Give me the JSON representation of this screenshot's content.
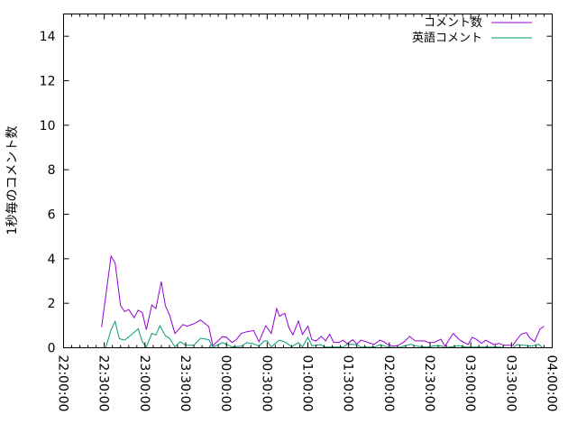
{
  "chart_data": {
    "type": "line",
    "title": "",
    "xlabel": "",
    "ylabel": "1秒毎のコメント数",
    "xlim": [
      "22:00:00",
      "04:00:00"
    ],
    "ylim": [
      0,
      15
    ],
    "grid": false,
    "legend_position": "top-right",
    "x_ticks": [
      "22:00:00",
      "22:30:00",
      "23:00:00",
      "23:30:00",
      "00:00:00",
      "00:30:00",
      "01:00:00",
      "01:30:00",
      "02:00:00",
      "02:30:00",
      "03:00:00",
      "03:30:00",
      "04:00:00"
    ],
    "y_ticks": [
      "0",
      "2",
      "4",
      "6",
      "8",
      "10",
      "12",
      "14"
    ],
    "series": [
      {
        "name": "コメント数",
        "color": "#9400d3",
        "x": [
          "22:28",
          "22:35",
          "22:38",
          "22:42",
          "22:45",
          "22:48",
          "22:52",
          "22:55",
          "22:58",
          "23:01",
          "23:05",
          "23:08",
          "23:12",
          "23:15",
          "23:18",
          "23:22",
          "23:28",
          "23:31",
          "23:36",
          "23:41",
          "23:47",
          "23:50",
          "23:57",
          "00:00",
          "00:04",
          "00:07",
          "00:11",
          "00:15",
          "00:20",
          "00:24",
          "00:29",
          "00:33",
          "00:37",
          "00:39",
          "00:43",
          "00:46",
          "00:49",
          "00:53",
          "00:56",
          "01:00",
          "01:03",
          "01:06",
          "01:10",
          "01:13",
          "01:16",
          "01:19",
          "01:23",
          "01:26",
          "01:29",
          "01:33",
          "01:36",
          "01:39",
          "01:43",
          "01:46",
          "01:49",
          "01:53",
          "01:56",
          "01:59",
          "02:03",
          "02:06",
          "02:11",
          "02:15",
          "02:19",
          "02:26",
          "02:29",
          "02:33",
          "02:38",
          "02:41",
          "02:47",
          "02:52",
          "02:58",
          "03:01",
          "03:04",
          "03:08",
          "03:11",
          "03:17",
          "03:21",
          "03:24",
          "03:31",
          "03:37",
          "03:41",
          "03:43",
          "03:47",
          "03:51",
          "03:54"
        ],
        "values": [
          0.93,
          4.12,
          3.8,
          1.9,
          1.62,
          1.72,
          1.35,
          1.69,
          1.58,
          0.81,
          1.92,
          1.76,
          2.97,
          1.89,
          1.49,
          0.64,
          1.04,
          0.97,
          1.08,
          1.24,
          0.95,
          0.09,
          0.5,
          0.47,
          0.24,
          0.35,
          0.65,
          0.72,
          0.77,
          0.27,
          0.99,
          0.64,
          1.76,
          1.42,
          1.55,
          0.9,
          0.58,
          1.2,
          0.6,
          0.97,
          0.36,
          0.31,
          0.51,
          0.31,
          0.61,
          0.24,
          0.24,
          0.34,
          0.18,
          0.36,
          0.16,
          0.34,
          0.27,
          0.2,
          0.16,
          0.34,
          0.27,
          0.14,
          0.07,
          0.09,
          0.27,
          0.51,
          0.31,
          0.31,
          0.23,
          0.24,
          0.38,
          0.07,
          0.64,
          0.34,
          0.14,
          0.47,
          0.38,
          0.2,
          0.34,
          0.14,
          0.2,
          0.11,
          0.11,
          0.61,
          0.68,
          0.47,
          0.27,
          0.84,
          0.97
        ]
      },
      {
        "name": "英語コメント",
        "color": "#009e73",
        "x": [
          "22:31",
          "22:35",
          "22:38",
          "22:41",
          "22:45",
          "22:51",
          "22:55",
          "22:58",
          "23:01",
          "23:05",
          "23:08",
          "23:11",
          "23:15",
          "23:18",
          "23:22",
          "23:26",
          "23:30",
          "23:36",
          "23:41",
          "23:47",
          "23:50",
          "23:57",
          "00:04",
          "00:11",
          "00:15",
          "00:20",
          "00:24",
          "00:28",
          "00:30",
          "00:33",
          "00:39",
          "00:44",
          "00:48",
          "00:53",
          "00:56",
          "01:00",
          "01:03",
          "01:09",
          "01:13",
          "01:26",
          "01:29",
          "01:36",
          "01:39",
          "01:49",
          "01:53",
          "01:59",
          "02:06",
          "02:16",
          "02:20",
          "02:28",
          "02:34",
          "02:39",
          "02:41",
          "02:51",
          "02:57",
          "03:12",
          "03:21",
          "03:26",
          "03:31",
          "03:34",
          "03:45",
          "03:50",
          "03:53"
        ],
        "values": [
          0,
          0.81,
          1.18,
          0.41,
          0.34,
          0.64,
          0.85,
          0.27,
          0.03,
          0.64,
          0.57,
          0.99,
          0.54,
          0.43,
          0.04,
          0.27,
          0.11,
          0.11,
          0.43,
          0.36,
          0.03,
          0.23,
          0.04,
          0.07,
          0.23,
          0.18,
          0.07,
          0.31,
          0.31,
          0.04,
          0.34,
          0.23,
          0.04,
          0.23,
          0.04,
          0.47,
          0.09,
          0.14,
          0.03,
          0.03,
          0.16,
          0.14,
          0.03,
          0.03,
          0.14,
          0.03,
          0,
          0.16,
          0.07,
          0.03,
          0.09,
          0.07,
          0,
          0.09,
          0.03,
          0.03,
          0.03,
          0,
          0,
          0.14,
          0.07,
          0.16,
          0
        ]
      }
    ]
  }
}
